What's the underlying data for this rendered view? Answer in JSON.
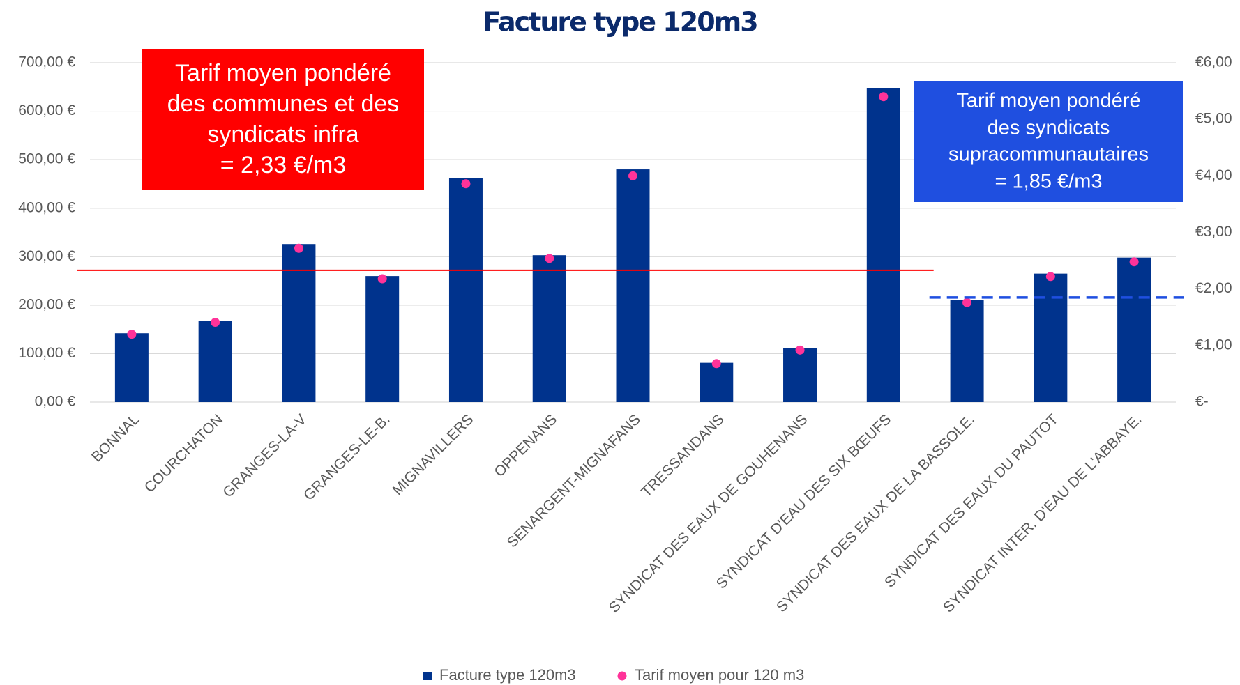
{
  "chart_data": {
    "type": "bar",
    "title": "Facture type 120m3",
    "categories": [
      "BONNAL",
      "COURCHATON",
      "GRANGES-LA-V",
      "GRANGES-LE-B.",
      "MIGNAVILLERS",
      "OPPENANS",
      "SENARGENT-MIGNAFANS",
      "TRESSANDANS",
      "SYNDICAT DES EAUX DE GOUHENANS",
      "SYNDICAT D'EAU DES SIX BŒUFS",
      "SYNDICAT DES EAUX DE LA BASSOLE.",
      "SYNDICAT DES EAUX DU PAUTOT",
      "SYNDICAT INTER. D'EAU DE L'ABBAYE."
    ],
    "series": [
      {
        "name": "Facture type 120m3",
        "type": "bar",
        "color": "#00338d",
        "values": [
          142,
          168,
          326,
          260,
          462,
          303,
          480,
          81,
          111,
          648,
          210,
          265,
          298
        ]
      },
      {
        "name": "Tarif moyen pour 120 m3",
        "type": "scatter",
        "axis": "y2",
        "color": "#ff3399",
        "values": [
          1.2,
          1.41,
          2.72,
          2.18,
          3.86,
          2.54,
          4.0,
          0.68,
          0.92,
          5.4,
          1.76,
          2.22,
          2.48
        ]
      }
    ],
    "ylim": [
      0,
      700
    ],
    "yticks": [
      {
        "value": 0,
        "label": "0,00 €"
      },
      {
        "value": 100,
        "label": "100,00 €"
      },
      {
        "value": 200,
        "label": "200,00 €"
      },
      {
        "value": 300,
        "label": "300,00 €"
      },
      {
        "value": 400,
        "label": "400,00 €"
      },
      {
        "value": 500,
        "label": "500,00 €"
      },
      {
        "value": 600,
        "label": "600,00 €"
      },
      {
        "value": 700,
        "label": "700,00 €"
      }
    ],
    "y2lim": [
      0,
      6
    ],
    "y2ticks": [
      {
        "value": 0,
        "label": "€-"
      },
      {
        "value": 1,
        "label": "€1,00"
      },
      {
        "value": 2,
        "label": "€2,00"
      },
      {
        "value": 3,
        "label": "€3,00"
      },
      {
        "value": 4,
        "label": "€4,00"
      },
      {
        "value": 5,
        "label": "€5,00"
      },
      {
        "value": 6,
        "label": "€6,00"
      }
    ],
    "grid": true,
    "legend": "bottom",
    "reference_lines": [
      {
        "value": 2.33,
        "axis": "y2",
        "color": "#ff0000",
        "dashed": false,
        "from": "BONNAL",
        "to": "SYNDICAT D'EAU DES SIX BŒUFS"
      },
      {
        "value": 1.85,
        "axis": "y2",
        "color": "#1f4fe0",
        "dashed": true,
        "from": "SYNDICAT DES EAUX DE LA BASSOLE.",
        "to": "SYNDICAT INTER. D'EAU DE L'ABBAYE."
      }
    ],
    "annotations": [
      {
        "lines": [
          "Tarif moyen pondéré",
          "des communes et des",
          "syndicats infra",
          "= 2,33 €/m3"
        ],
        "color": "#ff0000"
      },
      {
        "lines": [
          "Tarif moyen pondéré",
          "des syndicats",
          "supracommunautaires",
          "= 1,85 €/m3"
        ],
        "color": "#1f4fe0"
      }
    ]
  }
}
